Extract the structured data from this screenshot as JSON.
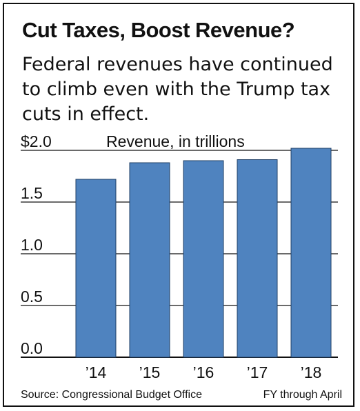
{
  "header": {
    "title": "Cut Taxes, Boost Revenue?",
    "subtitle": "Federal revenues have continued to climb even with the Trump tax cuts in effect."
  },
  "footer": {
    "source": "Source: Congressional Budget Office",
    "note": "FY through April"
  },
  "colors": {
    "bar": "#4f83bf",
    "gridline": "#111111"
  },
  "chart_data": {
    "type": "bar",
    "title": "Cut Taxes, Boost Revenue?",
    "subtitle": "Federal revenues have continued to climb even with the Trump tax cuts in effect.",
    "ylabel": "Revenue, in trillions",
    "xlabel": "",
    "categories": [
      "’14",
      "’15",
      "’16",
      "’17",
      "’18"
    ],
    "values": [
      1.72,
      1.88,
      1.9,
      1.91,
      2.02
    ],
    "ylim": [
      0,
      2.0
    ],
    "yticks": [
      0.0,
      0.5,
      1.0,
      1.5,
      2.0
    ],
    "ytick_labels": [
      "0.0",
      "0.5",
      "1.0",
      "1.5",
      "$2.0"
    ],
    "grid": true
  }
}
